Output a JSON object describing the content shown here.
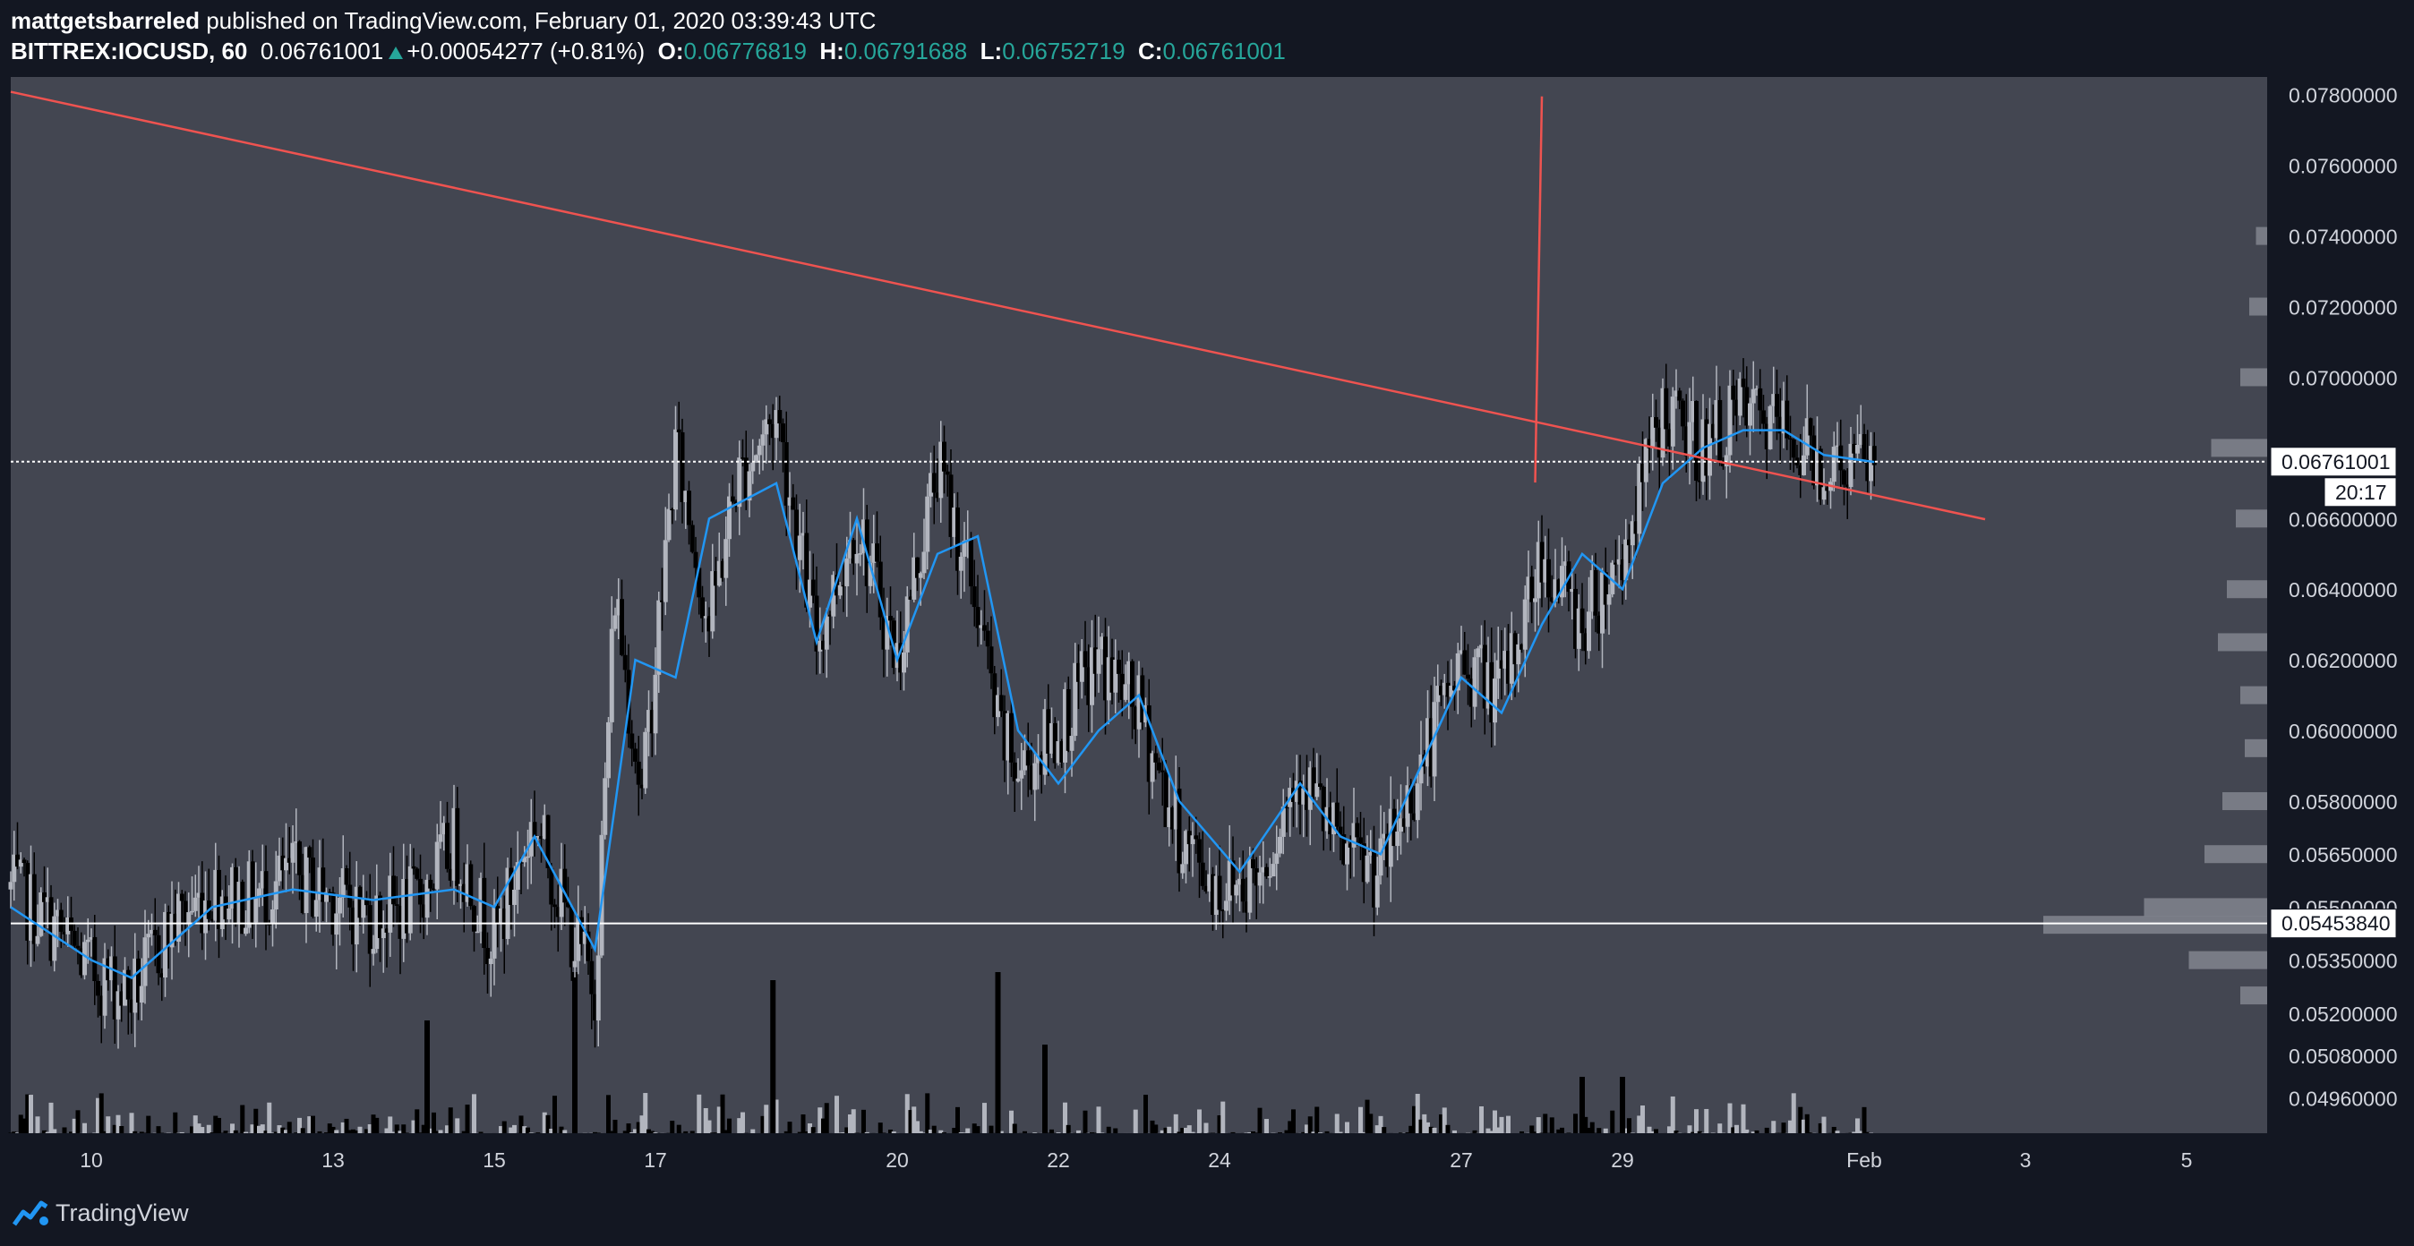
{
  "header": {
    "author": "mattgetsbarreled",
    "published_text": "published on TradingView.com, February 01, 2020 03:39:43 UTC",
    "symbol": "BITTREX:IOCUSD, 60",
    "last": "0.06761001",
    "change": "+0.00054277 (+0.81%)",
    "o_label": "O:",
    "o_value": "0.06776819",
    "h_label": "H:",
    "h_value": "0.06791688",
    "l_label": "L:",
    "l_value": "0.06752719",
    "c_label": "C:",
    "c_value": "0.06761001"
  },
  "footer": {
    "brand": "TradingView"
  },
  "colors": {
    "background": "#131722",
    "plot": "#434651",
    "up_candle": "#b2b5be",
    "down_candle": "#000000",
    "ma_line": "#2196f3",
    "trendline": "#ef5350",
    "accent_green": "#26a69a"
  },
  "chart_data": {
    "type": "candlestick",
    "x_axis": {
      "type": "date",
      "tick_labels": [
        "10",
        "13",
        "15",
        "17",
        "20",
        "22",
        "24",
        "27",
        "29",
        "Feb",
        "3",
        "5"
      ],
      "tick_dates": [
        "2020-01-10",
        "2020-01-13",
        "2020-01-15",
        "2020-01-17",
        "2020-01-20",
        "2020-01-22",
        "2020-01-24",
        "2020-01-27",
        "2020-01-29",
        "2020-02-01",
        "2020-02-03",
        "2020-02-05"
      ],
      "range": [
        "2020-01-09",
        "2020-02-06"
      ]
    },
    "y_axis": {
      "tick_labels": [
        "0.07800000",
        "0.07600000",
        "0.07400000",
        "0.07200000",
        "0.07000000",
        "0.06600000",
        "0.06400000",
        "0.06200000",
        "0.06000000",
        "0.05800000",
        "0.05650000",
        "0.05500000",
        "0.05350000",
        "0.05200000",
        "0.05080000",
        "0.04960000"
      ],
      "range": [
        0.0486,
        0.0785
      ]
    },
    "price_labels": [
      {
        "label": "0.06761001",
        "value": 0.06761001,
        "countdown": "20:17"
      },
      {
        "label": "0.05453840",
        "value": 0.0545384
      }
    ],
    "horizontal_lines": [
      {
        "value": 0.06761001,
        "style": "dotted",
        "color": "#ffffff"
      },
      {
        "value": 0.0545384,
        "style": "solid",
        "color": "#ffffff"
      }
    ],
    "trendlines": [
      {
        "from": {
          "date": "2020-01-09T00:00",
          "price": 0.07808
        },
        "to": {
          "date": "2020-02-02T12:00",
          "price": 0.06598
        },
        "color": "#ef5350"
      },
      {
        "from": {
          "date": "2020-01-28T00:00",
          "price": 0.07795
        },
        "to": {
          "date": "2020-01-27T22:00",
          "price": 0.06702
        },
        "color": "#ef5350"
      }
    ],
    "price_path": [
      {
        "date": "2020-01-09T00:00",
        "price": 0.0555
      },
      {
        "date": "2020-01-09T12:00",
        "price": 0.0545
      },
      {
        "date": "2020-01-10T00:00",
        "price": 0.0532
      },
      {
        "date": "2020-01-10T12:00",
        "price": 0.0525
      },
      {
        "date": "2020-01-11T00:00",
        "price": 0.0545
      },
      {
        "date": "2020-01-11T12:00",
        "price": 0.0555
      },
      {
        "date": "2020-01-12T00:00",
        "price": 0.0552
      },
      {
        "date": "2020-01-12T12:00",
        "price": 0.0559
      },
      {
        "date": "2020-01-13T00:00",
        "price": 0.0553
      },
      {
        "date": "2020-01-13T12:00",
        "price": 0.0547
      },
      {
        "date": "2020-01-14T00:00",
        "price": 0.0551
      },
      {
        "date": "2020-01-14T12:00",
        "price": 0.0568
      },
      {
        "date": "2020-01-15T00:00",
        "price": 0.054
      },
      {
        "date": "2020-01-15T12:00",
        "price": 0.0575
      },
      {
        "date": "2020-01-16T00:00",
        "price": 0.054
      },
      {
        "date": "2020-01-16T06:00",
        "price": 0.0528
      },
      {
        "date": "2020-01-16T12:00",
        "price": 0.064
      },
      {
        "date": "2020-01-16T20:00",
        "price": 0.058
      },
      {
        "date": "2020-01-17T06:00",
        "price": 0.068
      },
      {
        "date": "2020-01-17T16:00",
        "price": 0.063
      },
      {
        "date": "2020-01-18T00:00",
        "price": 0.067
      },
      {
        "date": "2020-01-18T12:00",
        "price": 0.069
      },
      {
        "date": "2020-01-19T00:00",
        "price": 0.0625
      },
      {
        "date": "2020-01-19T12:00",
        "price": 0.066
      },
      {
        "date": "2020-01-20T00:00",
        "price": 0.062
      },
      {
        "date": "2020-01-20T12:00",
        "price": 0.0675
      },
      {
        "date": "2020-01-21T00:00",
        "price": 0.0635
      },
      {
        "date": "2020-01-21T06:00",
        "price": 0.06
      },
      {
        "date": "2020-01-21T12:00",
        "price": 0.0588
      },
      {
        "date": "2020-01-22T00:00",
        "price": 0.06
      },
      {
        "date": "2020-01-22T12:00",
        "price": 0.062
      },
      {
        "date": "2020-01-23T00:00",
        "price": 0.0605
      },
      {
        "date": "2020-01-23T12:00",
        "price": 0.057
      },
      {
        "date": "2020-01-24T00:00",
        "price": 0.0555
      },
      {
        "date": "2020-01-24T12:00",
        "price": 0.056
      },
      {
        "date": "2020-01-25T00:00",
        "price": 0.059
      },
      {
        "date": "2020-01-25T12:00",
        "price": 0.0565
      },
      {
        "date": "2020-01-26T00:00",
        "price": 0.056
      },
      {
        "date": "2020-01-26T12:00",
        "price": 0.059
      },
      {
        "date": "2020-01-27T00:00",
        "price": 0.062
      },
      {
        "date": "2020-01-27T12:00",
        "price": 0.061
      },
      {
        "date": "2020-01-28T00:00",
        "price": 0.065
      },
      {
        "date": "2020-01-28T12:00",
        "price": 0.063
      },
      {
        "date": "2020-01-29T00:00",
        "price": 0.065
      },
      {
        "date": "2020-01-29T12:00",
        "price": 0.069
      },
      {
        "date": "2020-01-30T00:00",
        "price": 0.068
      },
      {
        "date": "2020-01-30T12:00",
        "price": 0.069
      },
      {
        "date": "2020-01-31T00:00",
        "price": 0.0685
      },
      {
        "date": "2020-01-31T12:00",
        "price": 0.0675
      },
      {
        "date": "2020-02-01T03:00",
        "price": 0.0676
      }
    ],
    "ma_path": [
      {
        "date": "2020-01-09T00:00",
        "price": 0.055
      },
      {
        "date": "2020-01-10T00:00",
        "price": 0.0535
      },
      {
        "date": "2020-01-10T12:00",
        "price": 0.053
      },
      {
        "date": "2020-01-11T12:00",
        "price": 0.055
      },
      {
        "date": "2020-01-12T12:00",
        "price": 0.0555
      },
      {
        "date": "2020-01-13T12:00",
        "price": 0.0552
      },
      {
        "date": "2020-01-14T12:00",
        "price": 0.0555
      },
      {
        "date": "2020-01-15T00:00",
        "price": 0.055
      },
      {
        "date": "2020-01-15T12:00",
        "price": 0.057
      },
      {
        "date": "2020-01-16T06:00",
        "price": 0.0538
      },
      {
        "date": "2020-01-16T18:00",
        "price": 0.062
      },
      {
        "date": "2020-01-17T06:00",
        "price": 0.0615
      },
      {
        "date": "2020-01-17T16:00",
        "price": 0.066
      },
      {
        "date": "2020-01-18T12:00",
        "price": 0.067
      },
      {
        "date": "2020-01-19T00:00",
        "price": 0.0625
      },
      {
        "date": "2020-01-19T12:00",
        "price": 0.066
      },
      {
        "date": "2020-01-20T00:00",
        "price": 0.062
      },
      {
        "date": "2020-01-20T12:00",
        "price": 0.065
      },
      {
        "date": "2020-01-21T00:00",
        "price": 0.0655
      },
      {
        "date": "2020-01-21T12:00",
        "price": 0.06
      },
      {
        "date": "2020-01-22T00:00",
        "price": 0.0585
      },
      {
        "date": "2020-01-22T12:00",
        "price": 0.06
      },
      {
        "date": "2020-01-23T00:00",
        "price": 0.061
      },
      {
        "date": "2020-01-23T12:00",
        "price": 0.058
      },
      {
        "date": "2020-01-24T06:00",
        "price": 0.056
      },
      {
        "date": "2020-01-25T00:00",
        "price": 0.0585
      },
      {
        "date": "2020-01-25T12:00",
        "price": 0.057
      },
      {
        "date": "2020-01-26T00:00",
        "price": 0.0565
      },
      {
        "date": "2020-01-26T12:00",
        "price": 0.059
      },
      {
        "date": "2020-01-27T00:00",
        "price": 0.0615
      },
      {
        "date": "2020-01-27T12:00",
        "price": 0.0605
      },
      {
        "date": "2020-01-28T00:00",
        "price": 0.063
      },
      {
        "date": "2020-01-28T12:00",
        "price": 0.065
      },
      {
        "date": "2020-01-29T00:00",
        "price": 0.064
      },
      {
        "date": "2020-01-29T12:00",
        "price": 0.067
      },
      {
        "date": "2020-01-30T00:00",
        "price": 0.068
      },
      {
        "date": "2020-01-30T12:00",
        "price": 0.0685
      },
      {
        "date": "2020-01-31T00:00",
        "price": 0.0685
      },
      {
        "date": "2020-01-31T12:00",
        "price": 0.0678
      },
      {
        "date": "2020-02-01T03:00",
        "price": 0.0676
      }
    ],
    "volume_spikes": [
      {
        "date": "2020-01-14T04:00",
        "height": 0.7
      },
      {
        "date": "2020-01-16T00:00",
        "height": 1.0
      },
      {
        "date": "2020-01-18T11:00",
        "height": 0.95
      },
      {
        "date": "2020-01-21T06:00",
        "height": 1.0
      },
      {
        "date": "2020-01-21T20:00",
        "height": 0.55
      },
      {
        "date": "2020-01-28T12:00",
        "height": 0.35
      },
      {
        "date": "2020-01-29T00:00",
        "height": 0.35
      }
    ],
    "volume_profile": [
      {
        "price": 0.074,
        "size": 0.05
      },
      {
        "price": 0.072,
        "size": 0.08
      },
      {
        "price": 0.07,
        "size": 0.12
      },
      {
        "price": 0.068,
        "size": 0.25
      },
      {
        "price": 0.066,
        "size": 0.14
      },
      {
        "price": 0.064,
        "size": 0.18
      },
      {
        "price": 0.0625,
        "size": 0.22
      },
      {
        "price": 0.061,
        "size": 0.12
      },
      {
        "price": 0.0595,
        "size": 0.1
      },
      {
        "price": 0.058,
        "size": 0.2
      },
      {
        "price": 0.0565,
        "size": 0.28
      },
      {
        "price": 0.055,
        "size": 0.55
      },
      {
        "price": 0.0545,
        "size": 1.0
      },
      {
        "price": 0.0535,
        "size": 0.35
      },
      {
        "price": 0.0525,
        "size": 0.12
      }
    ]
  }
}
